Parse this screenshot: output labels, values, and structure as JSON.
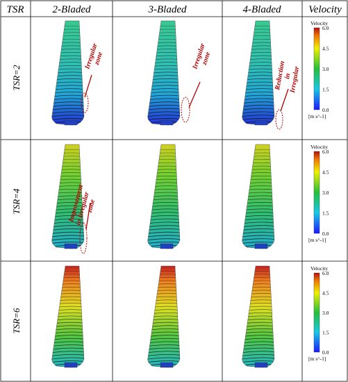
{
  "header": {
    "tsr": "TSR",
    "cols": [
      "2-Bladed",
      "3-Bladed",
      "4-Bladed"
    ],
    "velocity": "Velocity"
  },
  "rows": [
    "TSR=2",
    "TSR=4",
    "TSR=6"
  ],
  "colorbar": {
    "title": "Velocity",
    "ticks": [
      "6.0",
      "4.5",
      "3.0",
      "1.5",
      "0.0"
    ],
    "unit": "[m s^-1]"
  },
  "annotations": {
    "irregular_zone_1": [
      "Irregular",
      "zone"
    ],
    "irregular_zone_2": [
      "Irregular",
      "zone"
    ],
    "reduction": [
      "Reduction",
      "in",
      "Irregular"
    ],
    "improvement": [
      "Improvement",
      "in Irregular",
      "zone"
    ]
  },
  "colors": {
    "annotation": "#b00000",
    "streamline": "#1a1a1a"
  }
}
